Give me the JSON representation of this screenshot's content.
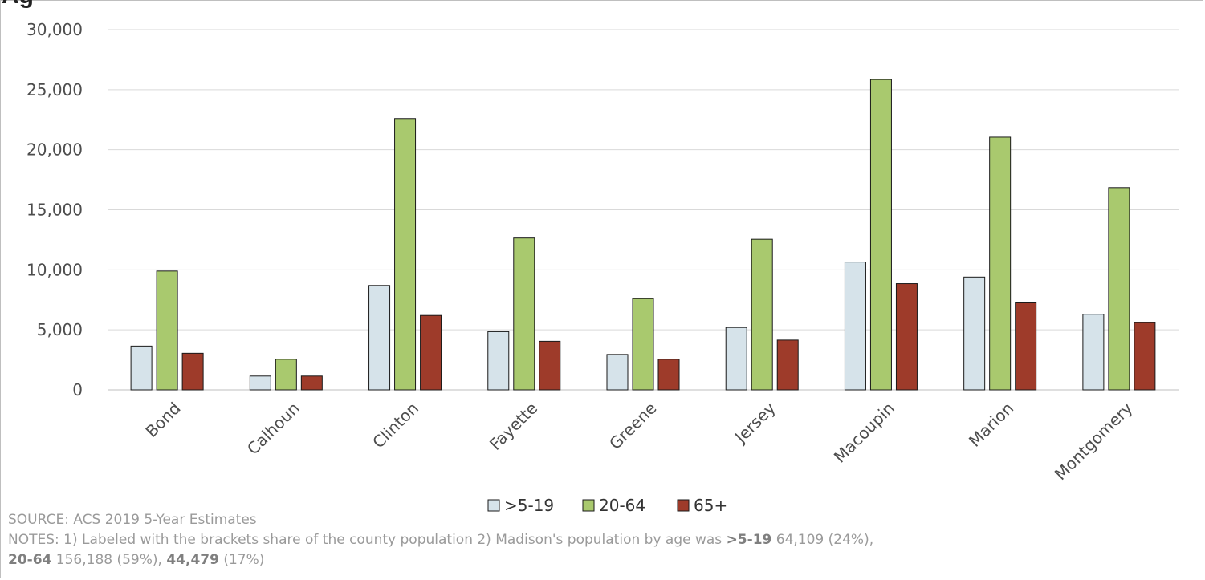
{
  "header": {
    "title_fragment": "Ag"
  },
  "chart_data": {
    "type": "bar",
    "title": "",
    "xlabel": "",
    "ylabel": "",
    "ylim": [
      0,
      30000
    ],
    "yticks": [
      0,
      5000,
      10000,
      15000,
      20000,
      25000,
      30000
    ],
    "ytick_labels": [
      "0",
      "5,000",
      "10,000",
      "15,000",
      "20,000",
      "25,000",
      "30,000"
    ],
    "grid": true,
    "legend_position": "bottom",
    "categories": [
      "Bond",
      "Calhoun",
      "Clinton",
      "Fayette",
      "Greene",
      "Jersey",
      "Macoupin",
      "Marion",
      "Montgomery"
    ],
    "series": [
      {
        "name": ">5-19",
        "color": "#d6e3ea",
        "values": [
          3650,
          1150,
          8700,
          4850,
          2950,
          5200,
          10650,
          9400,
          6300
        ]
      },
      {
        "name": "20-64",
        "color": "#a9c96e",
        "values": [
          9900,
          2550,
          22600,
          12650,
          7600,
          12550,
          25850,
          21050,
          16850
        ]
      },
      {
        "name": "65+",
        "color": "#9e3b2a",
        "values": [
          3050,
          1150,
          6200,
          4050,
          2550,
          4150,
          8850,
          7250,
          5600
        ]
      }
    ]
  },
  "footer": {
    "source": "SOURCE: ACS 2019 5-Year Estimates",
    "notes_prefix": "NOTES: 1) Labeled with the brackets share of the county population 2) Madison's population by age was ",
    "g1_label": ">5-19",
    "g1_value": " 64,109 (24%),",
    "g2_label": "20-64",
    "g2_value": " 156,188 (59%), ",
    "g3_label": "44,479",
    "g3_value": " (17%)"
  }
}
